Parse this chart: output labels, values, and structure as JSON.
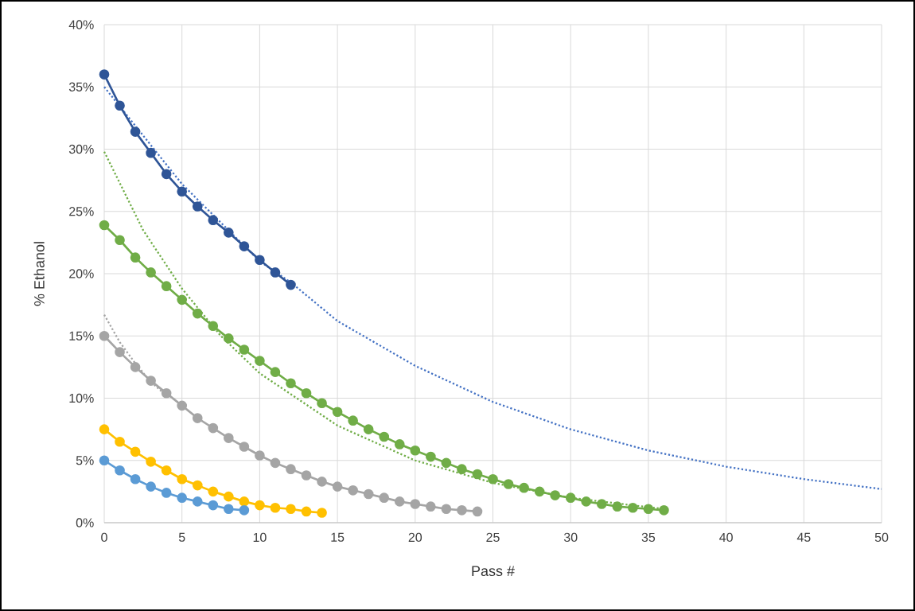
{
  "chart_data": {
    "type": "line",
    "xlabel": "Pass #",
    "ylabel": "% Ethanol",
    "xlim": [
      0,
      50
    ],
    "ylim": [
      0,
      40
    ],
    "xticks": [
      0,
      5,
      10,
      15,
      20,
      25,
      30,
      35,
      40,
      45,
      50
    ],
    "yticks": [
      {
        "value": 0,
        "label": "0%"
      },
      {
        "value": 5,
        "label": "5%"
      },
      {
        "value": 10,
        "label": "10%"
      },
      {
        "value": 15,
        "label": "15%"
      },
      {
        "value": 20,
        "label": "20%"
      },
      {
        "value": 25,
        "label": "25%"
      },
      {
        "value": 30,
        "label": "30%"
      },
      {
        "value": 35,
        "label": "35%"
      },
      {
        "value": 40,
        "label": "40%"
      }
    ],
    "grid": true,
    "marker": "circle",
    "line_style": "solid",
    "series": [
      {
        "color": "#4472c4",
        "marker": "none",
        "line_style": "dotted",
        "x": [
          0,
          5,
          10,
          12,
          15,
          20,
          25,
          30,
          35,
          40,
          45,
          50
        ],
        "values": [
          35.0,
          27.2,
          21.0,
          19.3,
          16.2,
          12.6,
          9.7,
          7.5,
          5.8,
          4.5,
          3.5,
          2.7
        ]
      },
      {
        "color": "#70ad47",
        "marker": "none",
        "line_style": "dotted",
        "x": [
          0,
          2.5,
          5,
          7.5,
          10,
          15,
          20,
          25,
          30,
          36
        ],
        "values": [
          29.8,
          23.5,
          18.8,
          15.0,
          12.0,
          7.8,
          5.0,
          3.2,
          2.0,
          1.1
        ]
      },
      {
        "color": "#a5a5a5",
        "marker": "none",
        "line_style": "dotted",
        "x": [
          0,
          1,
          2,
          3,
          4
        ],
        "values": [
          16.7,
          14.5,
          12.8,
          11.3,
          10.2
        ]
      },
      {
        "color": "#2f5597",
        "x": [
          0,
          1,
          2,
          3,
          4,
          5,
          6,
          7,
          8,
          9,
          10,
          11,
          12
        ],
        "values": [
          36.0,
          33.5,
          31.4,
          29.7,
          28.0,
          26.6,
          25.4,
          24.3,
          23.3,
          22.2,
          21.1,
          20.1,
          19.1
        ]
      },
      {
        "color": "#70ad47",
        "x": [
          0,
          1,
          2,
          3,
          4,
          5,
          6,
          7,
          8,
          9,
          10,
          11,
          12,
          13,
          14,
          15,
          16,
          17,
          18,
          19,
          20,
          21,
          22,
          23,
          24,
          25,
          26,
          27,
          28,
          29,
          30,
          31,
          32,
          33,
          34,
          35,
          36
        ],
        "values": [
          23.9,
          22.7,
          21.3,
          20.1,
          19.0,
          17.9,
          16.8,
          15.8,
          14.8,
          13.9,
          13.0,
          12.1,
          11.2,
          10.4,
          9.6,
          8.9,
          8.2,
          7.5,
          6.9,
          6.3,
          5.8,
          5.3,
          4.8,
          4.3,
          3.9,
          3.5,
          3.1,
          2.8,
          2.5,
          2.2,
          2.0,
          1.7,
          1.5,
          1.3,
          1.2,
          1.1,
          1.0
        ]
      },
      {
        "color": "#a5a5a5",
        "x": [
          0,
          1,
          2,
          3,
          4,
          5,
          6,
          7,
          8,
          9,
          10,
          11,
          12,
          13,
          14,
          15,
          16,
          17,
          18,
          19,
          20,
          21,
          22,
          23,
          24
        ],
        "values": [
          15.0,
          13.7,
          12.5,
          11.4,
          10.4,
          9.4,
          8.4,
          7.6,
          6.8,
          6.1,
          5.4,
          4.8,
          4.3,
          3.8,
          3.3,
          2.9,
          2.6,
          2.3,
          2.0,
          1.7,
          1.5,
          1.3,
          1.1,
          1.0,
          0.9
        ]
      },
      {
        "color": "#ffc000",
        "x": [
          0,
          1,
          2,
          3,
          4,
          5,
          6,
          7,
          8,
          9,
          10,
          11,
          12,
          13,
          14
        ],
        "values": [
          7.5,
          6.5,
          5.7,
          4.9,
          4.2,
          3.5,
          3.0,
          2.5,
          2.1,
          1.7,
          1.4,
          1.2,
          1.1,
          0.9,
          0.8
        ]
      },
      {
        "color": "#5b9bd5",
        "x": [
          0,
          1,
          2,
          3,
          4,
          5,
          6,
          7,
          8,
          9
        ],
        "values": [
          5.0,
          4.2,
          3.5,
          2.9,
          2.4,
          2.0,
          1.7,
          1.4,
          1.1,
          1.0
        ]
      }
    ]
  }
}
